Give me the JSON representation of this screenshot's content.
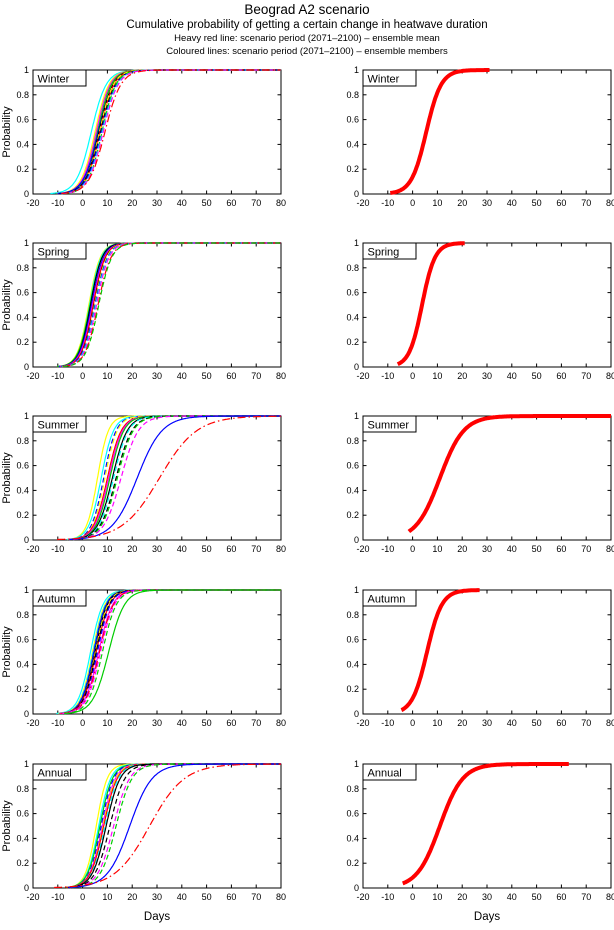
{
  "header": {
    "title": "Beograd A2 scenario",
    "subtitle": "Cumulative probability of getting a certain change in heatwave duration",
    "note_mean": "Heavy red line: scenario period (2071–2100) – ensemble mean",
    "note_members": "Coloured lines: scenario period (2071–2100) – ensemble members"
  },
  "chart_data": {
    "type": "line",
    "title": "Beograd A2 scenario",
    "subtitle": "Cumulative probability of getting a certain change in heatwave duration",
    "xlabel": "Days",
    "ylabel": "Probability",
    "xlim": [
      -20,
      80
    ],
    "ylim": [
      0,
      1
    ],
    "x_ticks": [
      -20,
      -10,
      0,
      10,
      20,
      30,
      40,
      50,
      60,
      70,
      80
    ],
    "y_ticks": [
      0,
      0.2,
      0.4,
      0.6,
      0.8,
      1
    ],
    "grid": false,
    "legend_position": "none",
    "curve_model": "cumulative logistic: y = 1/(1+exp(-(x-center)/spread)), x in days",
    "mean_line_width": 4,
    "member_line_width": 1.2,
    "panels": [
      {
        "label": "Winter",
        "col": "left",
        "row": 0,
        "curves": [
          {
            "color": "#00FFFF",
            "style": "solid",
            "center": 3.5,
            "spread": 3.0
          },
          {
            "color": "#FFFF00",
            "style": "solid",
            "center": 5.0,
            "spread": 2.8
          },
          {
            "color": "#FF00FF",
            "style": "solid",
            "center": 5.5,
            "spread": 2.8
          },
          {
            "color": "#00CC00",
            "style": "solid",
            "center": 6.0,
            "spread": 2.8
          },
          {
            "color": "#0000FF",
            "style": "solid",
            "center": 6.3,
            "spread": 3.0
          },
          {
            "color": "#000000",
            "style": "solid",
            "center": 6.6,
            "spread": 2.8
          },
          {
            "color": "#FF0000",
            "style": "solid",
            "center": 7.0,
            "spread": 2.8
          },
          {
            "color": "#FFFF00",
            "style": "dashed",
            "center": 6.8,
            "spread": 2.8
          },
          {
            "color": "#000000",
            "style": "dashed",
            "center": 7.2,
            "spread": 3.0
          },
          {
            "color": "#0000FF",
            "style": "dashed",
            "center": 7.5,
            "spread": 3.0
          },
          {
            "color": "#00CC00",
            "style": "dashed",
            "center": 7.8,
            "spread": 2.8
          },
          {
            "color": "#00FFFF",
            "style": "dashed",
            "center": 8.0,
            "spread": 3.0
          },
          {
            "color": "#FF00FF",
            "style": "dashed",
            "center": 8.3,
            "spread": 3.0
          },
          {
            "color": "#FF0000",
            "style": "dashdot",
            "center": 9.0,
            "spread": 3.2
          }
        ]
      },
      {
        "label": "Winter",
        "col": "right",
        "row": 0,
        "curves": [
          {
            "color": "#FF0000",
            "style": "solid",
            "center": 5.5,
            "spread": 3.0,
            "x_start": -9,
            "x_end": 31,
            "heavy": true
          }
        ]
      },
      {
        "label": "Spring",
        "col": "left",
        "row": 1,
        "curves": [
          {
            "color": "#FFFF00",
            "style": "solid",
            "center": 2.5,
            "spread": 2.3
          },
          {
            "color": "#00FFFF",
            "style": "solid",
            "center": 2.8,
            "spread": 2.3
          },
          {
            "color": "#00CC00",
            "style": "solid",
            "center": 3.0,
            "spread": 2.4
          },
          {
            "color": "#000000",
            "style": "solid",
            "center": 3.2,
            "spread": 2.3
          },
          {
            "color": "#0000FF",
            "style": "solid",
            "center": 3.6,
            "spread": 2.4
          },
          {
            "color": "#FF00FF",
            "style": "solid",
            "center": 4.0,
            "spread": 2.4
          },
          {
            "color": "#FF0000",
            "style": "solid",
            "center": 4.3,
            "spread": 2.4
          },
          {
            "color": "#000000",
            "style": "dashed",
            "center": 4.6,
            "spread": 2.4
          },
          {
            "color": "#FFFF00",
            "style": "dashed",
            "center": 4.8,
            "spread": 2.4
          },
          {
            "color": "#0000FF",
            "style": "dashed",
            "center": 5.0,
            "spread": 2.5
          },
          {
            "color": "#00FFFF",
            "style": "dashed",
            "center": 5.3,
            "spread": 2.5
          },
          {
            "color": "#FF00FF",
            "style": "dashed",
            "center": 5.6,
            "spread": 2.5
          },
          {
            "color": "#FF0000",
            "style": "dashdot",
            "center": 6.2,
            "spread": 2.6
          },
          {
            "color": "#00CC00",
            "style": "dashed",
            "center": 6.5,
            "spread": 2.6
          }
        ]
      },
      {
        "label": "Spring",
        "col": "right",
        "row": 1,
        "curves": [
          {
            "color": "#FF0000",
            "style": "solid",
            "center": 3.8,
            "spread": 2.6,
            "x_start": -6,
            "x_end": 21,
            "heavy": true
          }
        ]
      },
      {
        "label": "Summer",
        "col": "left",
        "row": 2,
        "curves": [
          {
            "color": "#FFFF00",
            "style": "solid",
            "center": 6.0,
            "spread": 2.2
          },
          {
            "color": "#00FFFF",
            "style": "solid",
            "center": 7.5,
            "spread": 2.5
          },
          {
            "color": "#0000FF",
            "style": "dashed",
            "center": 8.5,
            "spread": 2.5
          },
          {
            "color": "#FFFF00",
            "style": "dashed",
            "center": 9.0,
            "spread": 2.5
          },
          {
            "color": "#FF0000",
            "style": "solid",
            "center": 10.0,
            "spread": 2.8
          },
          {
            "color": "#FF00FF",
            "style": "solid",
            "center": 10.5,
            "spread": 2.8
          },
          {
            "color": "#00CC00",
            "style": "solid",
            "center": 11.0,
            "spread": 2.8
          },
          {
            "color": "#000000",
            "style": "solid",
            "center": 12.0,
            "spread": 3.0
          },
          {
            "color": "#00FFFF",
            "style": "dashed",
            "center": 12.5,
            "spread": 3.0
          },
          {
            "color": "#000000",
            "style": "dashed",
            "center": 13.5,
            "spread": 3.2
          },
          {
            "color": "#00CC00",
            "style": "dashed",
            "center": 14.0,
            "spread": 3.2
          },
          {
            "color": "#FF00FF",
            "style": "dashed",
            "center": 15.5,
            "spread": 3.5
          },
          {
            "color": "#0000FF",
            "style": "solid",
            "center": 22.0,
            "spread": 5.0
          },
          {
            "color": "#FF0000",
            "style": "dashdot",
            "center": 31.0,
            "spread": 7.5
          }
        ]
      },
      {
        "label": "Summer",
        "col": "right",
        "row": 2,
        "curves": [
          {
            "color": "#FF0000",
            "style": "solid",
            "center": 11.0,
            "spread": 4.8,
            "x_start": -1.5,
            "x_end": 80,
            "heavy": true
          }
        ]
      },
      {
        "label": "Autumn",
        "col": "left",
        "row": 3,
        "curves": [
          {
            "color": "#00FFFF",
            "style": "solid",
            "center": 3.2,
            "spread": 2.5
          },
          {
            "color": "#FFFF00",
            "style": "solid",
            "center": 4.0,
            "spread": 2.5
          },
          {
            "color": "#00FFFF",
            "style": "dashed",
            "center": 4.2,
            "spread": 2.5
          },
          {
            "color": "#0000FF",
            "style": "solid",
            "center": 4.5,
            "spread": 2.5
          },
          {
            "color": "#000000",
            "style": "solid",
            "center": 5.0,
            "spread": 2.5
          },
          {
            "color": "#FFFF00",
            "style": "dashed",
            "center": 5.2,
            "spread": 2.5
          },
          {
            "color": "#FF0000",
            "style": "solid",
            "center": 5.5,
            "spread": 2.7
          },
          {
            "color": "#000000",
            "style": "dashed",
            "center": 5.5,
            "spread": 2.6
          },
          {
            "color": "#0000FF",
            "style": "dashed",
            "center": 6.0,
            "spread": 2.6
          },
          {
            "color": "#FF00FF",
            "style": "solid",
            "center": 6.5,
            "spread": 2.8
          },
          {
            "color": "#FF0000",
            "style": "dashdot",
            "center": 6.8,
            "spread": 2.8
          },
          {
            "color": "#FF00FF",
            "style": "dashed",
            "center": 7.2,
            "spread": 2.8
          },
          {
            "color": "#00CC00",
            "style": "dashed",
            "center": 8.0,
            "spread": 2.8
          },
          {
            "color": "#00CC00",
            "style": "solid",
            "center": 10.5,
            "spread": 3.2
          }
        ]
      },
      {
        "label": "Autumn",
        "col": "right",
        "row": 3,
        "curves": [
          {
            "color": "#FF0000",
            "style": "solid",
            "center": 5.8,
            "spread": 3.0,
            "x_start": -4.5,
            "x_end": 27,
            "heavy": true
          }
        ]
      },
      {
        "label": "Annual",
        "col": "left",
        "row": 4,
        "curves": [
          {
            "color": "#FFFF00",
            "style": "solid",
            "center": 5.5,
            "spread": 2.2
          },
          {
            "color": "#00FFFF",
            "style": "solid",
            "center": 6.5,
            "spread": 2.4
          },
          {
            "color": "#00CC00",
            "style": "solid",
            "center": 7.0,
            "spread": 2.5
          },
          {
            "color": "#0000FF",
            "style": "dashed",
            "center": 7.5,
            "spread": 2.5
          },
          {
            "color": "#FF00FF",
            "style": "solid",
            "center": 8.0,
            "spread": 2.6
          },
          {
            "color": "#FFFF00",
            "style": "dashed",
            "center": 8.2,
            "spread": 2.6
          },
          {
            "color": "#FF0000",
            "style": "solid",
            "center": 8.5,
            "spread": 2.7
          },
          {
            "color": "#00FFFF",
            "style": "dashed",
            "center": 9.0,
            "spread": 2.7
          },
          {
            "color": "#000000",
            "style": "solid",
            "center": 9.5,
            "spread": 2.8
          },
          {
            "color": "#000000",
            "style": "dashed",
            "center": 11.0,
            "spread": 3.0
          },
          {
            "color": "#FF00FF",
            "style": "dashed",
            "center": 12.5,
            "spread": 3.2
          },
          {
            "color": "#00CC00",
            "style": "dashed",
            "center": 13.5,
            "spread": 3.2
          },
          {
            "color": "#0000FF",
            "style": "solid",
            "center": 19.0,
            "spread": 4.5
          },
          {
            "color": "#FF0000",
            "style": "dashdot",
            "center": 27.0,
            "spread": 7.0
          }
        ]
      },
      {
        "label": "Annual",
        "col": "right",
        "row": 4,
        "curves": [
          {
            "color": "#FF0000",
            "style": "solid",
            "center": 11.0,
            "spread": 4.6,
            "x_start": -4,
            "x_end": 63,
            "heavy": true
          }
        ]
      }
    ]
  }
}
